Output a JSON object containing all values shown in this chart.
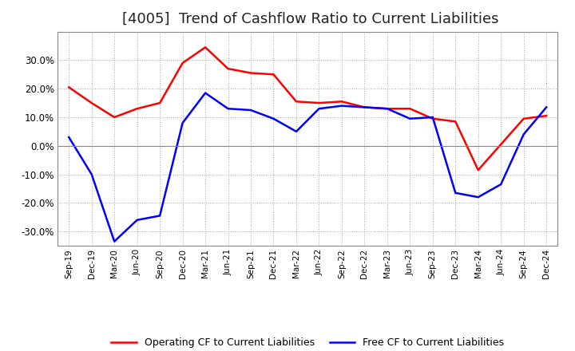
{
  "title": "[4005]  Trend of Cashflow Ratio to Current Liabilities",
  "title_fontsize": 13,
  "ylim": [
    -35,
    40
  ],
  "yticks": [
    -30,
    -20,
    -10,
    0,
    10,
    20,
    30
  ],
  "ytick_labels": [
    "-30.0%",
    "-20.0%",
    "-10.0%",
    "0.0%",
    "10.0%",
    "20.0%",
    "30.0%"
  ],
  "background_color": "#ffffff",
  "plot_background": "#ffffff",
  "grid_color": "#aaaaaa",
  "x_labels": [
    "Sep-19",
    "Dec-19",
    "Mar-20",
    "Jun-20",
    "Sep-20",
    "Dec-20",
    "Mar-21",
    "Jun-21",
    "Sep-21",
    "Dec-21",
    "Mar-22",
    "Jun-22",
    "Sep-22",
    "Dec-22",
    "Mar-23",
    "Jun-23",
    "Sep-23",
    "Dec-23",
    "Mar-24",
    "Jun-24",
    "Sep-24",
    "Dec-24"
  ],
  "operating_cf": [
    20.5,
    15.0,
    10.0,
    13.0,
    15.0,
    29.0,
    34.5,
    27.0,
    25.5,
    25.0,
    15.5,
    15.0,
    15.5,
    13.5,
    13.0,
    13.0,
    9.5,
    8.5,
    -8.5,
    0.5,
    9.5,
    10.5
  ],
  "free_cf": [
    3.0,
    -10.0,
    -33.5,
    -26.0,
    -24.5,
    8.0,
    18.5,
    13.0,
    12.5,
    9.5,
    5.0,
    13.0,
    14.0,
    13.5,
    13.0,
    9.5,
    10.0,
    -16.5,
    -18.0,
    -13.5,
    4.0,
    13.5
  ],
  "operating_color": "#ff0000",
  "free_color": "#0000ff",
  "line_width": 1.8,
  "legend_operating": "Operating CF to Current Liabilities",
  "legend_free": "Free CF to Current Liabilities"
}
